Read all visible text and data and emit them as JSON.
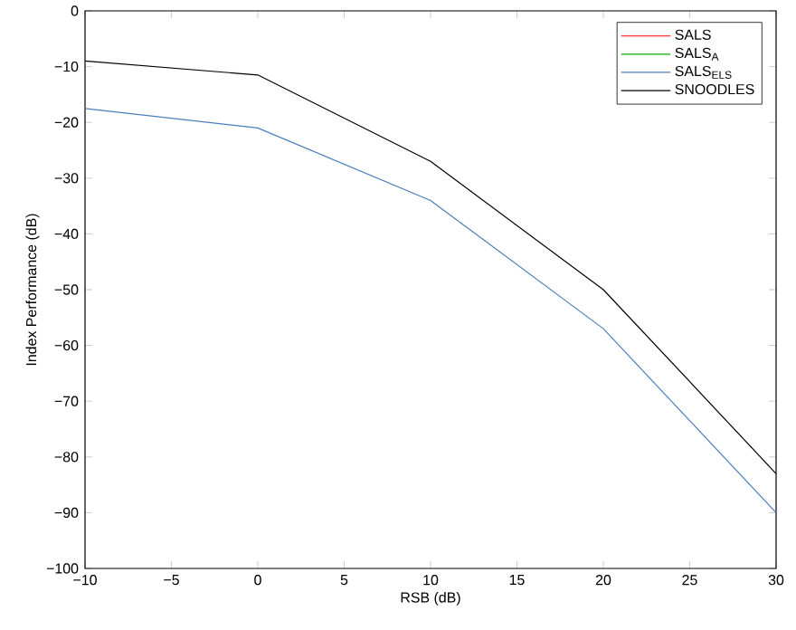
{
  "chart_data": {
    "type": "line",
    "xlabel": "RSB (dB)",
    "ylabel": "Index Performance (dB)",
    "x": [
      -10,
      0,
      10,
      20,
      30
    ],
    "xlim": [
      -10,
      30
    ],
    "xticks": [
      {
        "value": -10,
        "label": "−10"
      },
      {
        "value": -5,
        "label": "−5"
      },
      0,
      5,
      10,
      15,
      20,
      25,
      30
    ],
    "ylim": [
      -100,
      0
    ],
    "yticks": [
      {
        "value": -100,
        "label": "−100"
      },
      {
        "value": -90,
        "label": "−90"
      },
      {
        "value": -80,
        "label": "−80"
      },
      {
        "value": -70,
        "label": "−70"
      },
      {
        "value": -60,
        "label": "−60"
      },
      {
        "value": -50,
        "label": "−50"
      },
      {
        "value": -40,
        "label": "−40"
      },
      {
        "value": -30,
        "label": "−30"
      },
      {
        "value": -20,
        "label": "−20"
      },
      {
        "value": -10,
        "label": "−10"
      },
      0
    ],
    "series": [
      {
        "name": "SALS",
        "color": "#ff0000",
        "values": [
          null,
          null,
          null,
          null,
          null
        ]
      },
      {
        "name": "SALS$_{A}$",
        "color": "#00b000",
        "values": [
          null,
          null,
          null,
          null,
          null
        ]
      },
      {
        "name": "SALS$_{ELS}$",
        "color": "#4a7ebb",
        "values": [
          -17.5,
          -21,
          -34,
          -57,
          -90
        ]
      },
      {
        "name": "SNOODLES",
        "color": "#000000",
        "values": [
          -9,
          -11.5,
          -27,
          -50,
          -83
        ]
      }
    ],
    "legend": "top right",
    "grid": false
  }
}
